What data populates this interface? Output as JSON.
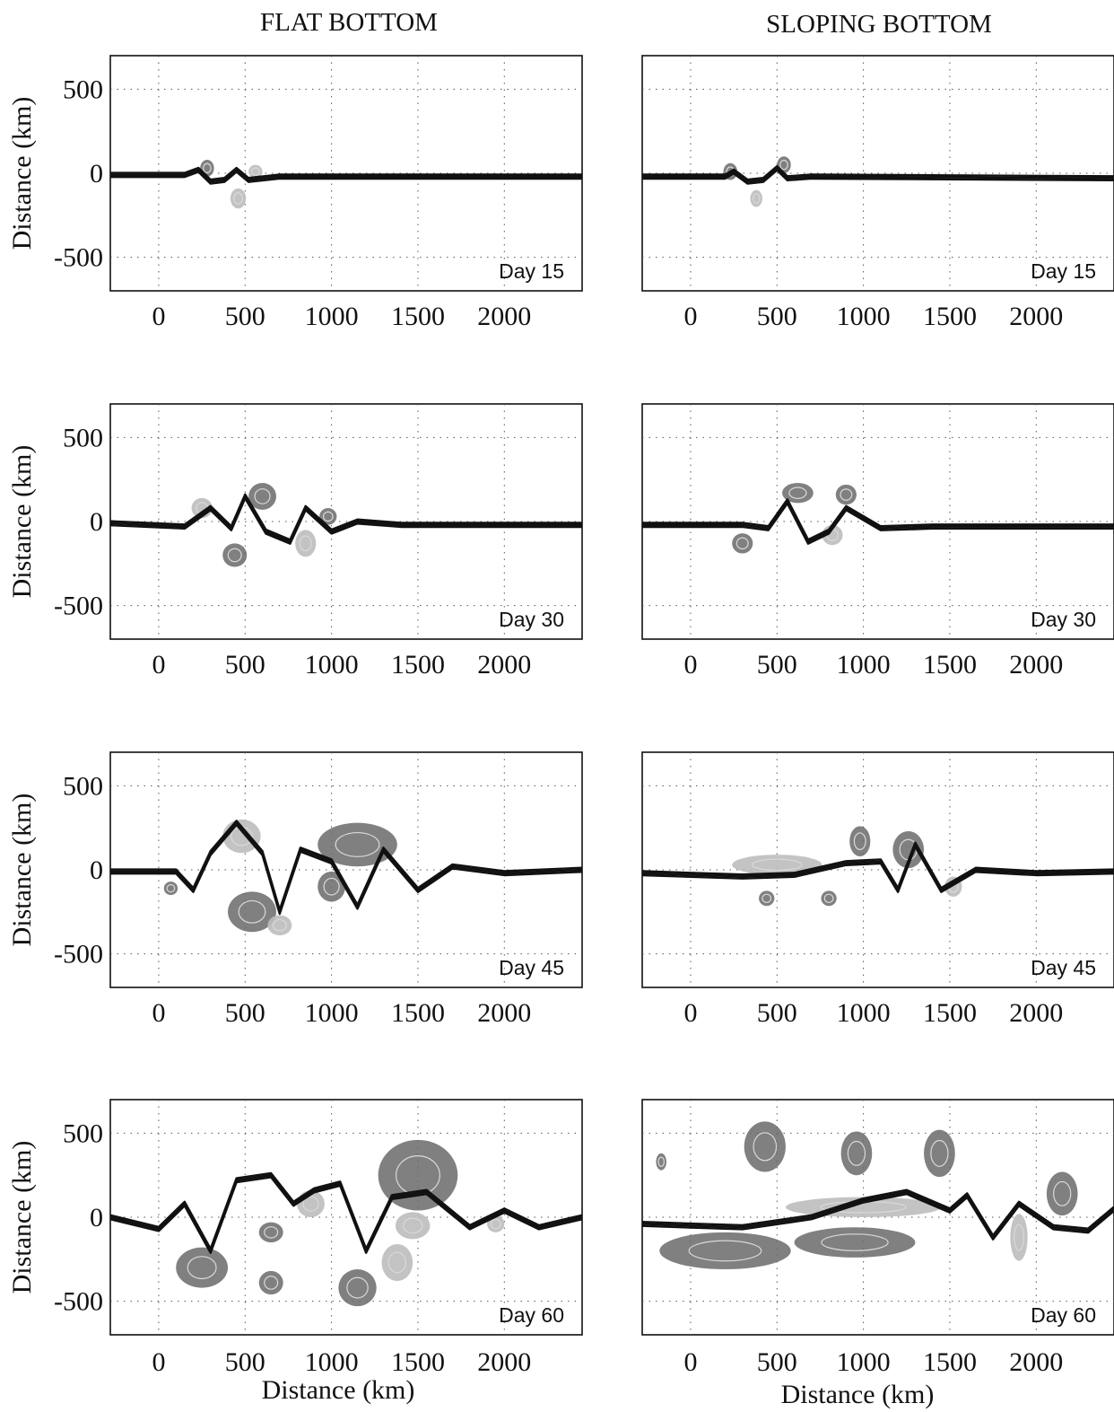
{
  "figure": {
    "column_titles": [
      "FLAT BOTTOM",
      "SLOPING BOTTOM"
    ],
    "x_axis_label": "Distance (km)",
    "y_axis_label": "Distance (km)"
  },
  "chart_data": [
    {
      "type": "contour",
      "column": "FLAT BOTTOM",
      "annotation": "Day 15",
      "xlim": [
        -280,
        2450
      ],
      "ylim": [
        -700,
        700
      ],
      "xticks": [
        0,
        500,
        1000,
        1500,
        2000
      ],
      "yticks": [
        500,
        0,
        -500
      ],
      "grid": true,
      "colors": {
        "positive": "#6a6a6a",
        "negative": "#bdbdbd"
      },
      "front_y": [
        {
          "x": -280,
          "y": -10
        },
        {
          "x": 150,
          "y": -10
        },
        {
          "x": 230,
          "y": 20
        },
        {
          "x": 300,
          "y": -50
        },
        {
          "x": 380,
          "y": -40
        },
        {
          "x": 450,
          "y": 20
        },
        {
          "x": 520,
          "y": -40
        },
        {
          "x": 700,
          "y": -20
        },
        {
          "x": 2450,
          "y": -20
        }
      ],
      "eddies": [
        {
          "x": 280,
          "y": 30,
          "rx": 40,
          "ry": 50,
          "sign": "positive"
        },
        {
          "x": 460,
          "y": -150,
          "rx": 45,
          "ry": 60,
          "sign": "negative"
        },
        {
          "x": 560,
          "y": 10,
          "rx": 40,
          "ry": 40,
          "sign": "negative"
        }
      ]
    },
    {
      "type": "contour",
      "column": "SLOPING BOTTOM",
      "annotation": "Day 15",
      "xlim": [
        -280,
        2450
      ],
      "ylim": [
        -700,
        700
      ],
      "xticks": [
        0,
        500,
        1000,
        1500,
        2000
      ],
      "yticks": [
        500,
        0,
        -500
      ],
      "grid": true,
      "colors": {
        "positive": "#6a6a6a",
        "negative": "#bdbdbd"
      },
      "front_y": [
        {
          "x": -280,
          "y": -20
        },
        {
          "x": 200,
          "y": -20
        },
        {
          "x": 250,
          "y": 10
        },
        {
          "x": 330,
          "y": -50
        },
        {
          "x": 420,
          "y": -40
        },
        {
          "x": 500,
          "y": 30
        },
        {
          "x": 560,
          "y": -30
        },
        {
          "x": 700,
          "y": -20
        },
        {
          "x": 2450,
          "y": -30
        }
      ],
      "eddies": [
        {
          "x": 230,
          "y": 10,
          "rx": 40,
          "ry": 50,
          "sign": "positive"
        },
        {
          "x": 380,
          "y": -150,
          "rx": 35,
          "ry": 50,
          "sign": "negative"
        },
        {
          "x": 540,
          "y": 50,
          "rx": 40,
          "ry": 50,
          "sign": "positive"
        }
      ]
    },
    {
      "type": "contour",
      "column": "FLAT BOTTOM",
      "annotation": "Day 30",
      "xlim": [
        -280,
        2450
      ],
      "ylim": [
        -700,
        700
      ],
      "xticks": [
        0,
        500,
        1000,
        1500,
        2000
      ],
      "yticks": [
        500,
        0,
        -500
      ],
      "grid": true,
      "colors": {
        "positive": "#6a6a6a",
        "negative": "#bdbdbd"
      },
      "front_y": [
        {
          "x": -280,
          "y": -10
        },
        {
          "x": 150,
          "y": -30
        },
        {
          "x": 300,
          "y": 80
        },
        {
          "x": 420,
          "y": -40
        },
        {
          "x": 500,
          "y": 150
        },
        {
          "x": 620,
          "y": -60
        },
        {
          "x": 760,
          "y": -120
        },
        {
          "x": 850,
          "y": 80
        },
        {
          "x": 1000,
          "y": -60
        },
        {
          "x": 1150,
          "y": 0
        },
        {
          "x": 1400,
          "y": -20
        },
        {
          "x": 2450,
          "y": -20
        }
      ],
      "eddies": [
        {
          "x": 250,
          "y": 80,
          "rx": 60,
          "ry": 60,
          "sign": "negative"
        },
        {
          "x": 600,
          "y": 150,
          "rx": 80,
          "ry": 80,
          "sign": "positive"
        },
        {
          "x": 440,
          "y": -200,
          "rx": 70,
          "ry": 70,
          "sign": "positive"
        },
        {
          "x": 850,
          "y": -130,
          "rx": 60,
          "ry": 80,
          "sign": "negative"
        },
        {
          "x": 980,
          "y": 30,
          "rx": 50,
          "ry": 50,
          "sign": "positive"
        }
      ]
    },
    {
      "type": "contour",
      "column": "SLOPING BOTTOM",
      "annotation": "Day 30",
      "xlim": [
        -280,
        2450
      ],
      "ylim": [
        -700,
        700
      ],
      "xticks": [
        0,
        500,
        1000,
        1500,
        2000
      ],
      "yticks": [
        500,
        0,
        -500
      ],
      "grid": true,
      "colors": {
        "positive": "#6a6a6a",
        "negative": "#bdbdbd"
      },
      "front_y": [
        {
          "x": -280,
          "y": -20
        },
        {
          "x": 300,
          "y": -20
        },
        {
          "x": 450,
          "y": -40
        },
        {
          "x": 560,
          "y": 120
        },
        {
          "x": 680,
          "y": -120
        },
        {
          "x": 800,
          "y": -60
        },
        {
          "x": 900,
          "y": 80
        },
        {
          "x": 1100,
          "y": -40
        },
        {
          "x": 1400,
          "y": -30
        },
        {
          "x": 2450,
          "y": -30
        }
      ],
      "eddies": [
        {
          "x": 620,
          "y": 170,
          "rx": 90,
          "ry": 60,
          "sign": "positive"
        },
        {
          "x": 900,
          "y": 160,
          "rx": 60,
          "ry": 60,
          "sign": "positive"
        },
        {
          "x": 300,
          "y": -130,
          "rx": 60,
          "ry": 60,
          "sign": "positive"
        },
        {
          "x": 820,
          "y": -80,
          "rx": 60,
          "ry": 60,
          "sign": "negative"
        }
      ]
    },
    {
      "type": "contour",
      "column": "FLAT BOTTOM",
      "annotation": "Day 45",
      "xlim": [
        -280,
        2450
      ],
      "ylim": [
        -700,
        700
      ],
      "xticks": [
        0,
        500,
        1000,
        1500,
        2000
      ],
      "yticks": [
        500,
        0,
        -500
      ],
      "grid": true,
      "colors": {
        "positive": "#6a6a6a",
        "negative": "#bdbdbd"
      },
      "front_y": [
        {
          "x": -280,
          "y": -10
        },
        {
          "x": 100,
          "y": -10
        },
        {
          "x": 200,
          "y": -120
        },
        {
          "x": 300,
          "y": 100
        },
        {
          "x": 450,
          "y": 280
        },
        {
          "x": 600,
          "y": 100
        },
        {
          "x": 700,
          "y": -250
        },
        {
          "x": 820,
          "y": 120
        },
        {
          "x": 1000,
          "y": 50
        },
        {
          "x": 1150,
          "y": -220
        },
        {
          "x": 1300,
          "y": 120
        },
        {
          "x": 1500,
          "y": -120
        },
        {
          "x": 1700,
          "y": 20
        },
        {
          "x": 2000,
          "y": -20
        },
        {
          "x": 2450,
          "y": 0
        }
      ],
      "eddies": [
        {
          "x": 480,
          "y": 200,
          "rx": 110,
          "ry": 100,
          "sign": "negative"
        },
        {
          "x": 540,
          "y": -250,
          "rx": 140,
          "ry": 120,
          "sign": "positive"
        },
        {
          "x": 700,
          "y": -330,
          "rx": 70,
          "ry": 60,
          "sign": "negative"
        },
        {
          "x": 1150,
          "y": 150,
          "rx": 230,
          "ry": 130,
          "sign": "positive"
        },
        {
          "x": 1000,
          "y": -100,
          "rx": 80,
          "ry": 90,
          "sign": "positive"
        },
        {
          "x": 70,
          "y": -110,
          "rx": 40,
          "ry": 40,
          "sign": "positive"
        }
      ]
    },
    {
      "type": "contour",
      "column": "SLOPING BOTTOM",
      "annotation": "Day 45",
      "xlim": [
        -280,
        2450
      ],
      "ylim": [
        -700,
        700
      ],
      "xticks": [
        0,
        500,
        1000,
        1500,
        2000
      ],
      "yticks": [
        500,
        0,
        -500
      ],
      "grid": true,
      "colors": {
        "positive": "#6a6a6a",
        "negative": "#bdbdbd"
      },
      "front_y": [
        {
          "x": -280,
          "y": -20
        },
        {
          "x": 300,
          "y": -40
        },
        {
          "x": 600,
          "y": -30
        },
        {
          "x": 900,
          "y": 40
        },
        {
          "x": 1100,
          "y": 50
        },
        {
          "x": 1200,
          "y": -120
        },
        {
          "x": 1300,
          "y": 150
        },
        {
          "x": 1450,
          "y": -120
        },
        {
          "x": 1650,
          "y": 0
        },
        {
          "x": 2000,
          "y": -20
        },
        {
          "x": 2450,
          "y": -10
        }
      ],
      "eddies": [
        {
          "x": 500,
          "y": 30,
          "rx": 260,
          "ry": 60,
          "sign": "negative"
        },
        {
          "x": 980,
          "y": 170,
          "rx": 60,
          "ry": 90,
          "sign": "positive"
        },
        {
          "x": 1260,
          "y": 120,
          "rx": 90,
          "ry": 110,
          "sign": "positive"
        },
        {
          "x": 440,
          "y": -170,
          "rx": 45,
          "ry": 45,
          "sign": "positive"
        },
        {
          "x": 800,
          "y": -170,
          "rx": 45,
          "ry": 45,
          "sign": "positive"
        },
        {
          "x": 1520,
          "y": -100,
          "rx": 50,
          "ry": 60,
          "sign": "negative"
        }
      ]
    },
    {
      "type": "contour",
      "column": "FLAT BOTTOM",
      "annotation": "Day 60",
      "xlim": [
        -280,
        2450
      ],
      "ylim": [
        -700,
        700
      ],
      "xticks": [
        0,
        500,
        1000,
        1500,
        2000
      ],
      "yticks": [
        500,
        0,
        -500
      ],
      "grid": true,
      "colors": {
        "positive": "#6a6a6a",
        "negative": "#bdbdbd"
      },
      "front_y": [
        {
          "x": -280,
          "y": 0
        },
        {
          "x": 0,
          "y": -70
        },
        {
          "x": 150,
          "y": 80
        },
        {
          "x": 300,
          "y": -200
        },
        {
          "x": 450,
          "y": 220
        },
        {
          "x": 650,
          "y": 250
        },
        {
          "x": 780,
          "y": 80
        },
        {
          "x": 900,
          "y": 160
        },
        {
          "x": 1050,
          "y": 200
        },
        {
          "x": 1200,
          "y": -200
        },
        {
          "x": 1350,
          "y": 120
        },
        {
          "x": 1550,
          "y": 150
        },
        {
          "x": 1800,
          "y": -60
        },
        {
          "x": 2000,
          "y": 40
        },
        {
          "x": 2200,
          "y": -60
        },
        {
          "x": 2450,
          "y": 0
        }
      ],
      "eddies": [
        {
          "x": 250,
          "y": -300,
          "rx": 150,
          "ry": 120,
          "sign": "positive"
        },
        {
          "x": 880,
          "y": 80,
          "rx": 80,
          "ry": 80,
          "sign": "negative"
        },
        {
          "x": 650,
          "y": -90,
          "rx": 70,
          "ry": 60,
          "sign": "positive"
        },
        {
          "x": 650,
          "y": -390,
          "rx": 70,
          "ry": 70,
          "sign": "positive"
        },
        {
          "x": 1150,
          "y": -420,
          "rx": 110,
          "ry": 110,
          "sign": "positive"
        },
        {
          "x": 1500,
          "y": 250,
          "rx": 230,
          "ry": 210,
          "sign": "positive"
        },
        {
          "x": 1470,
          "y": -50,
          "rx": 100,
          "ry": 80,
          "sign": "negative"
        },
        {
          "x": 1380,
          "y": -270,
          "rx": 90,
          "ry": 110,
          "sign": "negative"
        },
        {
          "x": 1950,
          "y": -40,
          "rx": 50,
          "ry": 50,
          "sign": "negative"
        }
      ]
    },
    {
      "type": "contour",
      "column": "SLOPING BOTTOM",
      "annotation": "Day 60",
      "xlim": [
        -280,
        2450
      ],
      "ylim": [
        -700,
        700
      ],
      "xticks": [
        0,
        500,
        1000,
        1500,
        2000
      ],
      "yticks": [
        500,
        0,
        -500
      ],
      "grid": true,
      "colors": {
        "positive": "#6a6a6a",
        "negative": "#bdbdbd"
      },
      "front_y": [
        {
          "x": -280,
          "y": -40
        },
        {
          "x": 300,
          "y": -60
        },
        {
          "x": 700,
          "y": 0
        },
        {
          "x": 1000,
          "y": 100
        },
        {
          "x": 1250,
          "y": 150
        },
        {
          "x": 1500,
          "y": 40
        },
        {
          "x": 1600,
          "y": 130
        },
        {
          "x": 1750,
          "y": -120
        },
        {
          "x": 1900,
          "y": 80
        },
        {
          "x": 2100,
          "y": -60
        },
        {
          "x": 2300,
          "y": -80
        },
        {
          "x": 2450,
          "y": 50
        }
      ],
      "eddies": [
        {
          "x": 430,
          "y": 420,
          "rx": 120,
          "ry": 150,
          "sign": "positive"
        },
        {
          "x": 960,
          "y": 380,
          "rx": 90,
          "ry": 130,
          "sign": "positive"
        },
        {
          "x": 1440,
          "y": 380,
          "rx": 90,
          "ry": 140,
          "sign": "positive"
        },
        {
          "x": 2150,
          "y": 140,
          "rx": 90,
          "ry": 130,
          "sign": "positive"
        },
        {
          "x": 200,
          "y": -200,
          "rx": 380,
          "ry": 110,
          "sign": "positive"
        },
        {
          "x": 950,
          "y": -150,
          "rx": 350,
          "ry": 90,
          "sign": "positive"
        },
        {
          "x": 1000,
          "y": 60,
          "rx": 450,
          "ry": 60,
          "sign": "negative"
        },
        {
          "x": 1900,
          "y": -120,
          "rx": 50,
          "ry": 140,
          "sign": "negative"
        },
        {
          "x": -170,
          "y": 330,
          "rx": 30,
          "ry": 50,
          "sign": "positive"
        }
      ]
    }
  ]
}
